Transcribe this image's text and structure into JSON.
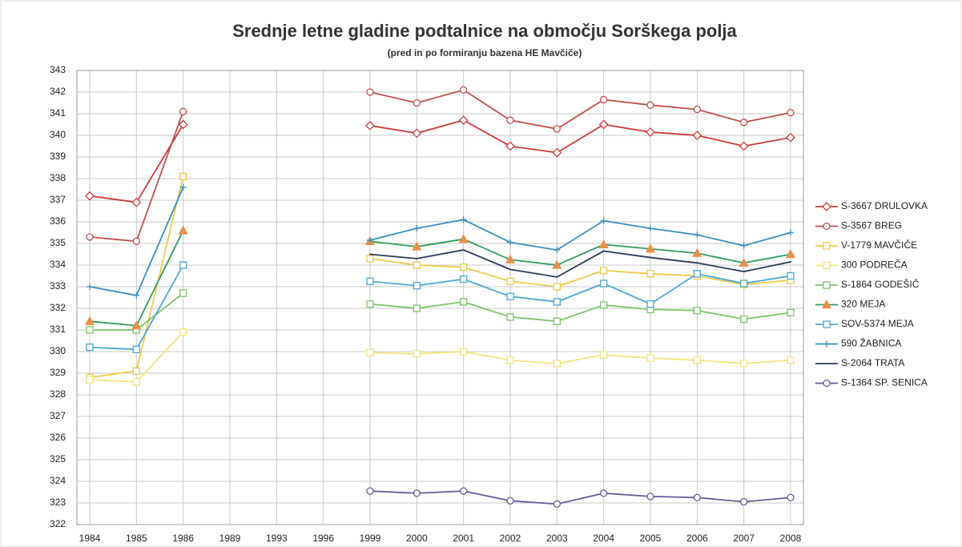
{
  "chart_data": {
    "type": "line",
    "title": "Srednje letne gladine podtalnice na območju Sorškega polja",
    "subtitle": "(pred in po formiranju bazena HE Mavčiče)",
    "categories": [
      "1984",
      "1985",
      "1986",
      "1989",
      "1993",
      "1996",
      "1999",
      "2000",
      "2001",
      "2002",
      "2003",
      "2004",
      "2005",
      "2006",
      "2007",
      "2008"
    ],
    "ylim": [
      322,
      343
    ],
    "yticks": [
      322,
      323,
      324,
      325,
      326,
      327,
      328,
      329,
      330,
      331,
      332,
      333,
      334,
      335,
      336,
      337,
      338,
      339,
      340,
      341,
      342,
      343
    ],
    "grid": true,
    "legend": "right",
    "series": [
      {
        "name": "S-3667 DRULOVKA",
        "color": "#cf3b3b",
        "marker": "diamond",
        "values": [
          337.2,
          336.9,
          340.5,
          null,
          null,
          null,
          340.45,
          340.1,
          340.7,
          339.5,
          339.2,
          340.5,
          340.15,
          340.0,
          339.5,
          339.9
        ]
      },
      {
        "name": "S-3567 BREG",
        "color": "#c0504d",
        "marker": "circle",
        "values": [
          335.3,
          335.1,
          341.1,
          null,
          null,
          null,
          342.0,
          341.5,
          342.1,
          340.7,
          340.3,
          341.65,
          341.4,
          341.2,
          340.6,
          341.05
        ]
      },
      {
        "name": "V-1779 MAVČIČE",
        "color": "#eecb4a",
        "marker": "square",
        "values": [
          328.8,
          329.1,
          338.1,
          null,
          null,
          null,
          334.3,
          334.0,
          333.9,
          333.25,
          333.0,
          333.75,
          333.6,
          333.5,
          333.1,
          333.3
        ]
      },
      {
        "name": "300 PODREČA",
        "color": "#f3e47a",
        "marker": "square",
        "values": [
          328.7,
          328.6,
          330.9,
          null,
          null,
          null,
          329.95,
          329.9,
          330.0,
          329.6,
          329.45,
          329.85,
          329.7,
          329.6,
          329.45,
          329.6
        ]
      },
      {
        "name": "S-1864 GODEŠIČ",
        "color": "#7cc46a",
        "marker": "square",
        "values": [
          331.0,
          331.0,
          332.7,
          null,
          null,
          null,
          332.2,
          332.0,
          332.3,
          331.6,
          331.4,
          332.15,
          331.95,
          331.9,
          331.5,
          331.8
        ]
      },
      {
        "name": "320 MEJA",
        "color": "#2e9e5e",
        "marker": "triangle",
        "values": [
          331.4,
          331.2,
          335.6,
          null,
          null,
          null,
          335.1,
          334.85,
          335.2,
          334.25,
          334.0,
          334.95,
          334.75,
          334.55,
          334.1,
          334.5
        ]
      },
      {
        "name": "SOV-5374 MEJA",
        "color": "#4aa8d8",
        "marker": "square",
        "values": [
          330.2,
          330.1,
          334.0,
          null,
          null,
          null,
          333.25,
          333.05,
          333.35,
          332.55,
          332.3,
          333.15,
          332.2,
          333.6,
          333.15,
          333.5
        ]
      },
      {
        "name": "590 ŽABNICA",
        "color": "#3a8fc0",
        "marker": "star",
        "values": [
          333.0,
          332.6,
          337.6,
          null,
          null,
          null,
          335.15,
          335.7,
          336.1,
          335.05,
          334.7,
          336.05,
          335.7,
          335.4,
          334.9,
          335.5
        ]
      },
      {
        "name": "S-2064 TRATA",
        "color": "#2b3a5c",
        "marker": "none",
        "values": [
          null,
          null,
          null,
          null,
          null,
          null,
          334.5,
          334.3,
          334.7,
          333.8,
          333.45,
          334.65,
          334.35,
          334.1,
          333.7,
          334.15
        ]
      },
      {
        "name": "S-1364 SP. SENICA",
        "color": "#6a5a9a",
        "marker": "circle",
        "values": [
          null,
          null,
          null,
          null,
          null,
          null,
          323.55,
          323.45,
          323.55,
          323.1,
          322.95,
          323.45,
          323.3,
          323.25,
          323.05,
          323.25
        ]
      }
    ]
  }
}
